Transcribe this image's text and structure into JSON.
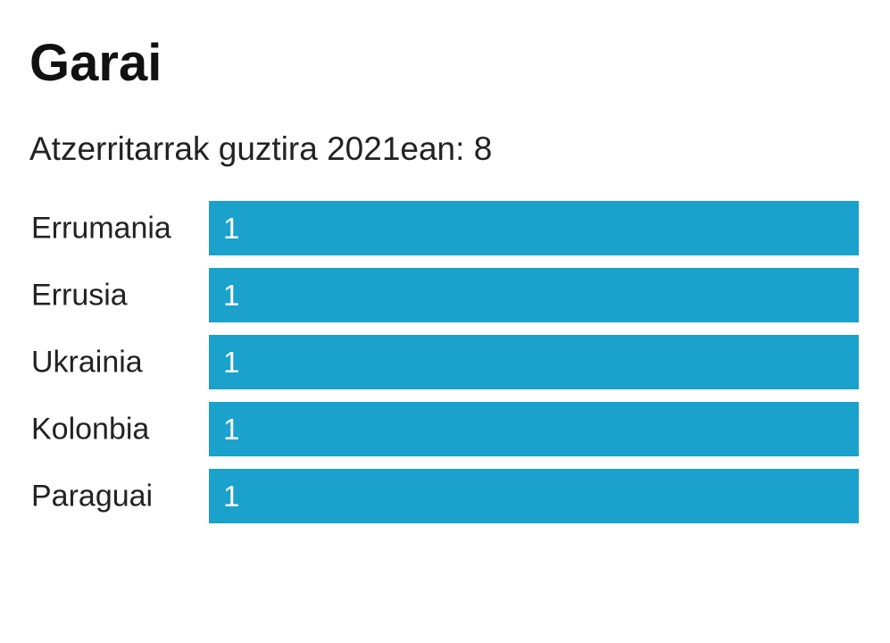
{
  "title": "Garai",
  "subtitle": "Atzerritarrak guztira 2021ean: 8",
  "colors": {
    "bar": "#1aa1cc",
    "label_text": "#222222",
    "value_text": "#ffffff"
  },
  "chart_data": {
    "type": "bar",
    "orientation": "horizontal",
    "categories": [
      "Errumania",
      "Errusia",
      "Ukrainia",
      "Kolonbia",
      "Paraguai"
    ],
    "values": [
      1,
      1,
      1,
      1,
      1
    ],
    "data_labels": [
      "1",
      "1",
      "1",
      "1",
      "1"
    ],
    "xlim": [
      0,
      1
    ],
    "grid": false,
    "legend": "none"
  }
}
